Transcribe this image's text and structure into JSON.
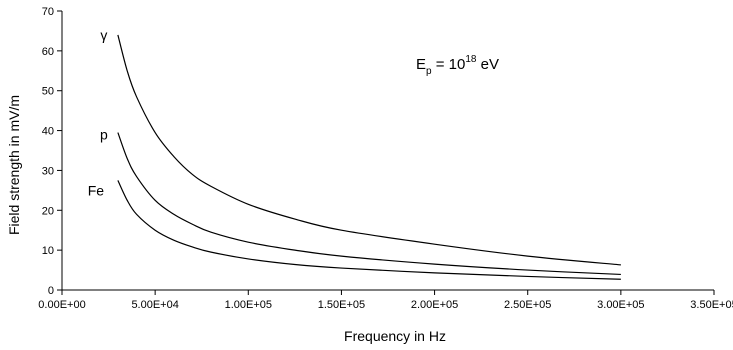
{
  "chart_data": {
    "type": "line",
    "xlabel": "Frequency in Hz",
    "ylabel": "Field strength in mV/m",
    "xlim": [
      0,
      350000
    ],
    "ylim": [
      0,
      70
    ],
    "x_ticks": [
      "0.00E+00",
      "5.00E+04",
      "1.00E+05",
      "1.50E+05",
      "2.00E+05",
      "2.50E+05",
      "3.00E+05",
      "3.50E+05"
    ],
    "x_tick_values": [
      0,
      50000,
      100000,
      150000,
      200000,
      250000,
      300000,
      350000
    ],
    "y_ticks": [
      "0",
      "10",
      "20",
      "30",
      "40",
      "50",
      "60",
      "70"
    ],
    "y_tick_values": [
      0,
      10,
      20,
      30,
      40,
      50,
      60,
      70
    ],
    "grid": false,
    "legend": "none",
    "annotation": {
      "base": "E",
      "sub": "p",
      "mid": " = 10",
      "sup": "18",
      "tail": " eV"
    },
    "series": [
      {
        "name": "γ",
        "label_text": "γ",
        "x": [
          30000,
          35000,
          40000,
          50000,
          60000,
          70000,
          80000,
          100000,
          125000,
          150000,
          200000,
          250000,
          300000
        ],
        "values": [
          64,
          55,
          48.5,
          39.5,
          33.5,
          29,
          26,
          21.5,
          17.8,
          15,
          11.5,
          8.5,
          6.3
        ]
      },
      {
        "name": "p",
        "label_text": "p",
        "x": [
          30000,
          35000,
          40000,
          50000,
          60000,
          70000,
          80000,
          100000,
          125000,
          150000,
          200000,
          250000,
          300000
        ],
        "values": [
          39.5,
          33,
          28.5,
          22.5,
          19,
          16.5,
          14.5,
          12,
          10,
          8.5,
          6.5,
          5,
          3.9
        ]
      },
      {
        "name": "Fe",
        "label_text": "Fe",
        "x": [
          30000,
          35000,
          40000,
          50000,
          60000,
          70000,
          80000,
          100000,
          125000,
          150000,
          200000,
          250000,
          300000
        ],
        "values": [
          27.5,
          22.5,
          19,
          15,
          12.5,
          10.8,
          9.5,
          7.8,
          6.4,
          5.5,
          4.3,
          3.4,
          2.7
        ]
      }
    ]
  }
}
